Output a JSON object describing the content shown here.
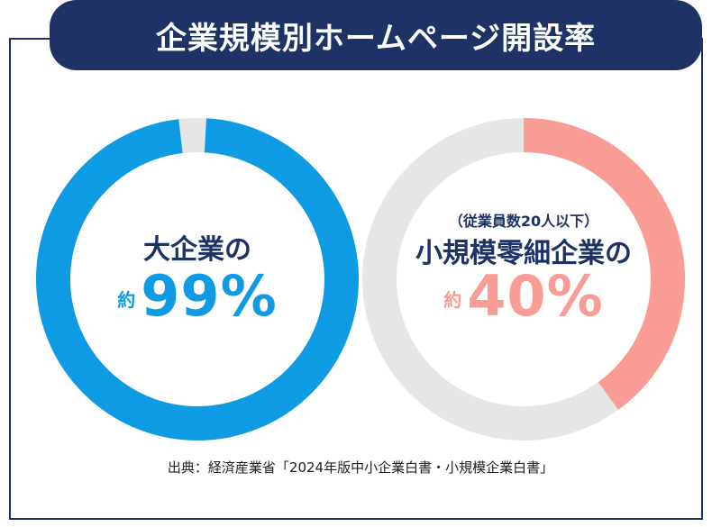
{
  "title": "企業規模別ホームページ開設率",
  "chart_data": [
    {
      "type": "pie",
      "label": "大企業の",
      "prefix": "約",
      "value": 99,
      "value_text": "99%",
      "color": "#0e9be3",
      "remainder_color": "#e6e6e6"
    },
    {
      "type": "pie",
      "sublabel": "（従業員数20人以下）",
      "label": "小規模零細企業の",
      "prefix": "約",
      "value": 40,
      "value_text": "40%",
      "color": "#fa9c96",
      "remainder_color": "#e6e6e6"
    }
  ],
  "source": "出典：経済産業省「2024年版中小企業白書・小規模企業白書」",
  "colors": {
    "navy": "#1f3266"
  }
}
